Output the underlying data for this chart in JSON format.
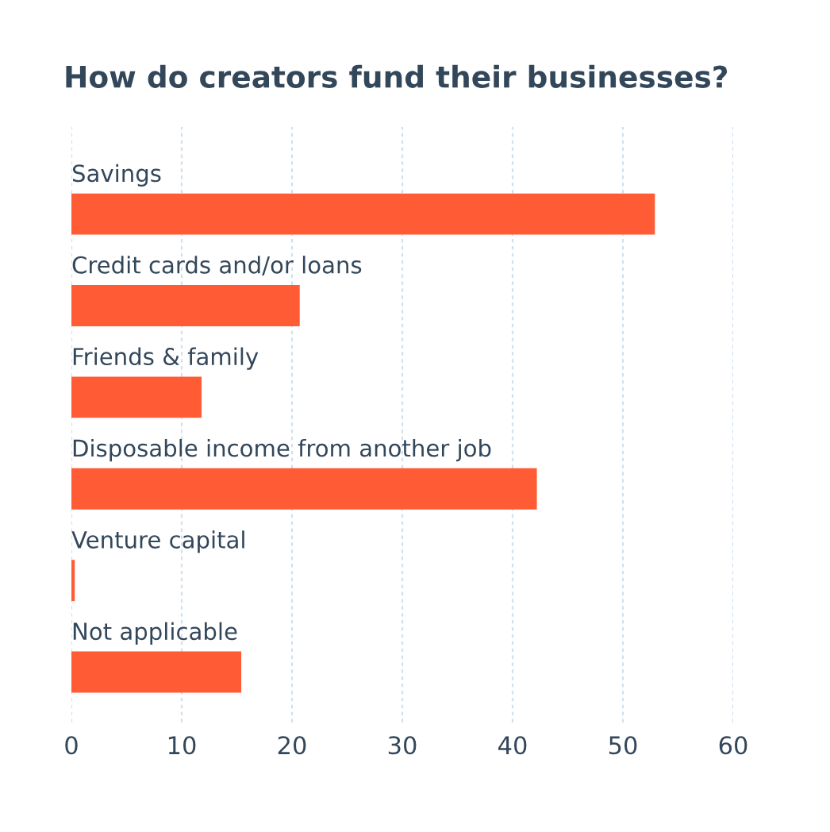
{
  "chart_data": {
    "type": "bar",
    "orientation": "horizontal",
    "title": "How do creators fund their businesses?",
    "categories": [
      "Savings",
      "Credit cards and/or loans",
      "Friends & family",
      "Disposable income from another job",
      "Venture capital",
      "Not applicable"
    ],
    "values": [
      52.9,
      20.7,
      11.8,
      42.2,
      0.3,
      15.4
    ],
    "color": "#ff5c35",
    "xlim": [
      0,
      60
    ],
    "xticks": [
      0,
      10,
      20,
      30,
      40,
      50,
      60
    ],
    "grid": "x"
  }
}
